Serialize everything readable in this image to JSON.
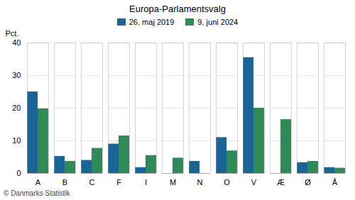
{
  "chart_data": {
    "type": "bar",
    "title": "Europa-Parlamentsvalg",
    "categories": [
      "A",
      "B",
      "C",
      "F",
      "I",
      "M",
      "N",
      "O",
      "V",
      "Æ",
      "Ø",
      "Å"
    ],
    "series": [
      {
        "name": "26. maj 2019",
        "color": "#1a6496",
        "values": [
          25.0,
          5.2,
          4.0,
          9.0,
          1.8,
          0.0,
          3.7,
          11.0,
          35.5,
          0.0,
          3.3,
          1.8
        ]
      },
      {
        "name": "9. juni 2024",
        "color": "#2e8b57",
        "values": [
          19.8,
          3.7,
          7.7,
          11.5,
          5.5,
          4.7,
          0.0,
          6.9,
          20.0,
          16.5,
          3.7,
          1.6
        ]
      }
    ],
    "ylabel": "Pct.",
    "ylim": [
      0,
      40
    ],
    "yticks": [
      0,
      10,
      20,
      30,
      40
    ],
    "grid": true,
    "legend": "top",
    "footer": "© Danmarks Statistik"
  }
}
